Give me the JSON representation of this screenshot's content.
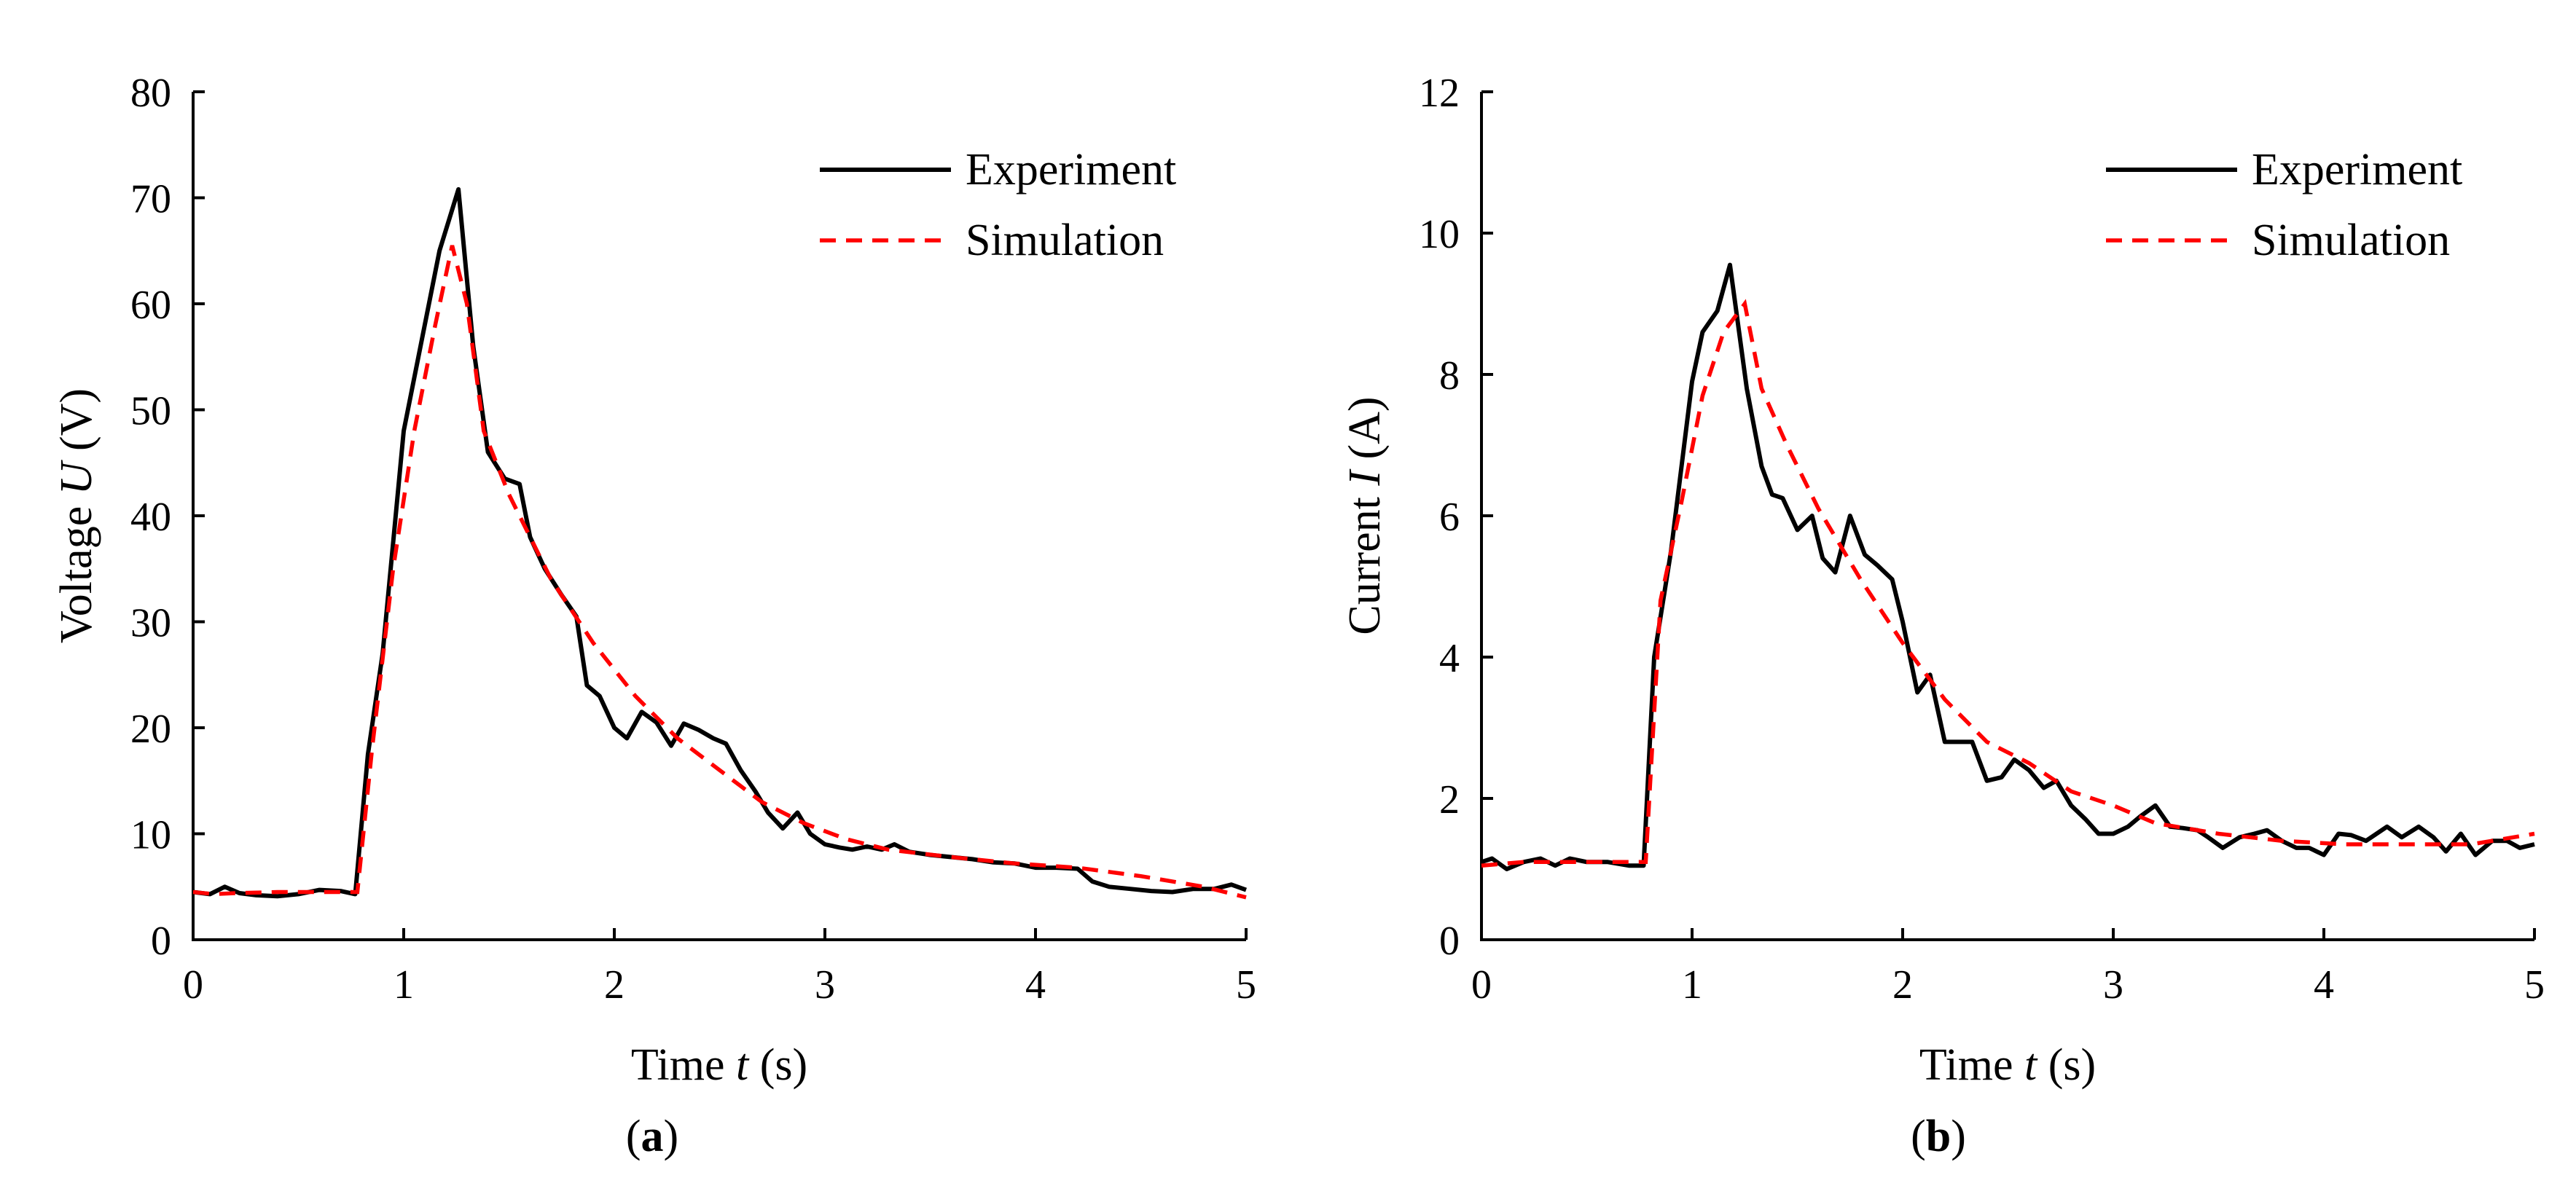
{
  "chart_data": [
    {
      "type": "line",
      "panel_label": "a",
      "xlabel_prefix": "Time ",
      "xlabel_var": "t",
      "xlabel_unit": " (s)",
      "ylabel_prefix": "Voltage ",
      "ylabel_var": "U",
      "ylabel_unit": " (V)",
      "xlim": [
        0,
        5
      ],
      "ylim": [
        0,
        80
      ],
      "xticks": [
        0,
        1,
        2,
        3,
        4,
        5
      ],
      "yticks": [
        0,
        10,
        20,
        30,
        40,
        50,
        60,
        70,
        80
      ],
      "legend_position": "top-right",
      "grid": false,
      "series": [
        {
          "name": "Experiment",
          "color": "#000000",
          "style": "solid",
          "x": [
            0,
            0.08,
            0.15,
            0.22,
            0.3,
            0.4,
            0.5,
            0.6,
            0.7,
            0.77,
            0.83,
            0.9,
            1.0,
            1.08,
            1.17,
            1.26,
            1.33,
            1.4,
            1.48,
            1.55,
            1.6,
            1.67,
            1.75,
            1.82,
            1.87,
            1.93,
            2.0,
            2.06,
            2.13,
            2.2,
            2.27,
            2.33,
            2.4,
            2.47,
            2.53,
            2.6,
            2.67,
            2.73,
            2.8,
            2.87,
            2.93,
            3.0,
            3.07,
            3.13,
            3.2,
            3.27,
            3.33,
            3.4,
            3.5,
            3.6,
            3.7,
            3.8,
            3.9,
            4.0,
            4.1,
            4.2,
            4.27,
            4.35,
            4.45,
            4.55,
            4.65,
            4.75,
            4.85,
            4.93,
            5.0
          ],
          "y": [
            4.5,
            4.3,
            5.0,
            4.4,
            4.2,
            4.1,
            4.3,
            4.7,
            4.6,
            4.3,
            17.5,
            27,
            48,
            56,
            65,
            70.8,
            56,
            46,
            43.5,
            43,
            38,
            35,
            32.5,
            30.5,
            24,
            23,
            20,
            19,
            21.5,
            20.5,
            18.3,
            20.4,
            19.8,
            19,
            18.5,
            16,
            14,
            12,
            10.5,
            12,
            10,
            9,
            8.7,
            8.5,
            8.8,
            8.5,
            9,
            8.3,
            8,
            7.8,
            7.6,
            7.3,
            7.2,
            6.8,
            6.8,
            6.7,
            5.5,
            5.0,
            4.8,
            4.6,
            4.5,
            4.8,
            4.8,
            5.2,
            4.7
          ]
        },
        {
          "name": "Simulation",
          "color": "#ff0000",
          "style": "dashed",
          "x": [
            0,
            0.1,
            0.2,
            0.4,
            0.6,
            0.78,
            0.85,
            0.95,
            1.05,
            1.15,
            1.23,
            1.3,
            1.38,
            1.5,
            1.7,
            1.9,
            2.1,
            2.3,
            2.5,
            2.7,
            2.9,
            3.1,
            3.3,
            3.6,
            3.9,
            4.2,
            4.5,
            4.8,
            5.0
          ],
          "y": [
            4.5,
            4.3,
            4.4,
            4.5,
            4.5,
            4.5,
            18,
            35,
            48,
            58,
            65.5,
            60,
            48,
            42,
            34,
            28,
            23,
            19,
            16,
            13,
            11,
            9.5,
            8.5,
            7.8,
            7.2,
            6.8,
            6.0,
            5.0,
            4.0
          ]
        }
      ]
    },
    {
      "type": "line",
      "panel_label": "b",
      "xlabel_prefix": "Time ",
      "xlabel_var": "t",
      "xlabel_unit": " (s)",
      "ylabel_prefix": "Current ",
      "ylabel_var": "I",
      "ylabel_unit": " (A)",
      "xlim": [
        0,
        5
      ],
      "ylim": [
        0,
        12
      ],
      "xticks": [
        0,
        1,
        2,
        3,
        4,
        5
      ],
      "yticks": [
        0,
        2,
        4,
        6,
        8,
        10,
        12
      ],
      "legend_position": "top-right",
      "grid": false,
      "series": [
        {
          "name": "Experiment",
          "color": "#000000",
          "style": "solid",
          "x": [
            0,
            0.05,
            0.12,
            0.2,
            0.28,
            0.35,
            0.42,
            0.5,
            0.6,
            0.7,
            0.77,
            0.82,
            0.9,
            1.0,
            1.05,
            1.12,
            1.18,
            1.26,
            1.33,
            1.38,
            1.43,
            1.5,
            1.57,
            1.62,
            1.68,
            1.75,
            1.82,
            1.88,
            1.95,
            2.0,
            2.07,
            2.13,
            2.2,
            2.27,
            2.33,
            2.4,
            2.47,
            2.53,
            2.6,
            2.67,
            2.73,
            2.8,
            2.87,
            2.93,
            3.0,
            3.07,
            3.13,
            3.2,
            3.27,
            3.33,
            3.4,
            3.45,
            3.52,
            3.6,
            3.67,
            3.73,
            3.8,
            3.87,
            3.93,
            4.0,
            4.07,
            4.13,
            4.2,
            4.3,
            4.37,
            4.45,
            4.52,
            4.58,
            4.65,
            4.72,
            4.8,
            4.87,
            4.93,
            5.0
          ],
          "y": [
            1.1,
            1.15,
            1.0,
            1.1,
            1.15,
            1.05,
            1.15,
            1.1,
            1.1,
            1.05,
            1.05,
            4.0,
            5.5,
            7.9,
            8.6,
            8.9,
            9.55,
            7.8,
            6.7,
            6.3,
            6.25,
            5.8,
            6.0,
            5.4,
            5.2,
            6.0,
            5.45,
            5.3,
            5.1,
            4.5,
            3.5,
            3.75,
            2.8,
            2.8,
            2.8,
            2.25,
            2.3,
            2.55,
            2.4,
            2.15,
            2.25,
            1.9,
            1.7,
            1.5,
            1.5,
            1.6,
            1.75,
            1.9,
            1.6,
            1.58,
            1.55,
            1.45,
            1.3,
            1.45,
            1.5,
            1.55,
            1.4,
            1.3,
            1.3,
            1.2,
            1.5,
            1.48,
            1.4,
            1.6,
            1.45,
            1.6,
            1.45,
            1.25,
            1.5,
            1.2,
            1.4,
            1.4,
            1.3,
            1.35
          ]
        },
        {
          "name": "Simulation",
          "color": "#ff0000",
          "style": "dashed",
          "x": [
            0,
            0.2,
            0.4,
            0.6,
            0.78,
            0.85,
            0.95,
            1.05,
            1.15,
            1.25,
            1.33,
            1.45,
            1.6,
            1.8,
            2.0,
            2.2,
            2.4,
            2.6,
            2.8,
            3.0,
            3.2,
            3.5,
            3.8,
            4.1,
            4.4,
            4.7,
            5.0
          ],
          "y": [
            1.05,
            1.1,
            1.1,
            1.1,
            1.1,
            4.8,
            6.2,
            7.7,
            8.6,
            9.0,
            7.8,
            7.0,
            6.1,
            5.1,
            4.2,
            3.4,
            2.8,
            2.5,
            2.1,
            1.9,
            1.65,
            1.5,
            1.4,
            1.35,
            1.35,
            1.35,
            1.5
          ]
        }
      ]
    }
  ]
}
